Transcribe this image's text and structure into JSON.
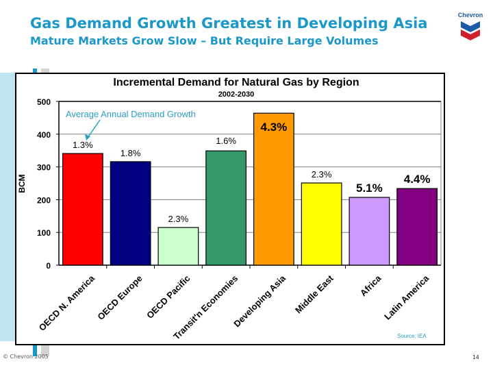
{
  "slide": {
    "title": "Gas Demand Growth Greatest in Developing Asia",
    "subtitle": "Mature Markets Grow Slow – But Require Large Volumes",
    "logo_text": "Chevron",
    "logo_icon": "chevron-logo-icon",
    "footer_copyright": "© Chevron 2005",
    "page_number": "14",
    "colors": {
      "title": "#1b98c8",
      "annotation": "#2a9fc0"
    }
  },
  "chart_data": {
    "type": "bar",
    "title": "Incremental Demand for Natural Gas by Region",
    "subtitle": "2002-2030",
    "xlabel": "",
    "ylabel": "BCM",
    "ylim": [
      0,
      500
    ],
    "yticks": [
      "0",
      "100",
      "200",
      "300",
      "400",
      "500"
    ],
    "grid": true,
    "categories": [
      "OECD N. America",
      "OECD Europe",
      "OECD Pacific",
      "Transit'n Economies",
      "Developing Asia",
      "Middle East",
      "Africa",
      "Latin America"
    ],
    "values": [
      341,
      316,
      115,
      349,
      464,
      251,
      207,
      234
    ],
    "colors": [
      "#ff0000",
      "#000080",
      "#ccffcc",
      "#339966",
      "#ff9900",
      "#ffff00",
      "#cc99ff",
      "#800080"
    ],
    "data_labels": [
      "1.3%",
      "1.8%",
      "2.3%",
      "1.6%",
      "4.3%",
      "2.3%",
      "5.1%",
      "4.4%"
    ],
    "annotation": "Average Annual Demand Growth",
    "source": "Source: IEA"
  }
}
